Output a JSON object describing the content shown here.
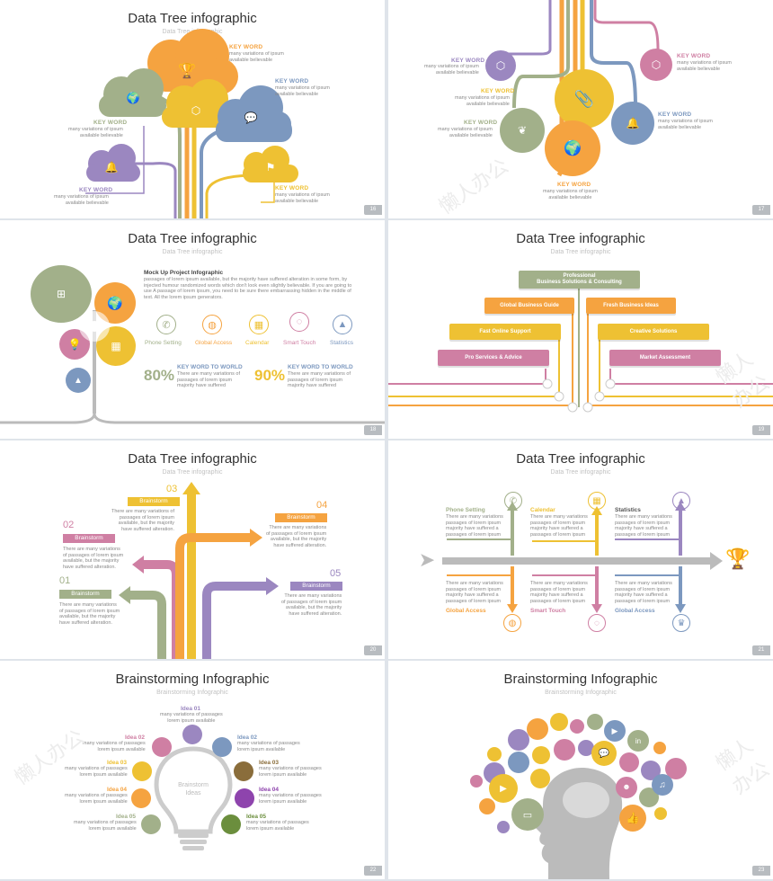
{
  "colors": {
    "orange": "#f5a340",
    "yellow": "#eec133",
    "green": "#a2b08a",
    "blue": "#7c98bf",
    "purple": "#9b87c0",
    "pink": "#cf7fa3",
    "gray": "#bbbbbb"
  },
  "watermark": "懒人办公",
  "s16": {
    "title": "Data Tree infographic",
    "subtitle": "Data Tree infographic",
    "page": "16",
    "items": [
      {
        "kw": "KEY WORD",
        "text": "many variations of ipsum\navailable believable"
      },
      {
        "kw": "KEY WORD",
        "text": "many variations of ipsum\navailable believable"
      },
      {
        "kw": "KEY WORD",
        "text": "many variations of ipsum\navailable believable"
      },
      {
        "kw": "KEY WORD",
        "text": "many variations of ipsum\navailable believable"
      },
      {
        "kw": "KEY WORD",
        "text": "many variations of ipsum\navailable believable"
      }
    ]
  },
  "s17": {
    "page": "17",
    "items": [
      {
        "kw": "KEY WORD",
        "text": "many variations of ipsum\navailable believable"
      },
      {
        "kw": "KEY WORD",
        "text": "many variations of ipsum\navailable believable"
      },
      {
        "kw": "KEY WORD",
        "text": "many variations of ipsum\navailable believable"
      },
      {
        "kw": "KEY WORD",
        "text": "many variations of ipsum\navailable believable"
      },
      {
        "kw": "KEY WORD",
        "text": "many variations of ipsum\navailable believable"
      },
      {
        "kw": "KEY WORD",
        "text": "many variations of ipsum\navailable believable"
      }
    ]
  },
  "s18": {
    "title": "Data Tree infographic",
    "subtitle": "Data Tree infographic",
    "page": "18",
    "mock_title": "Mock Up Project Infographic",
    "mock_text": "passages of lorem ipsum available, but the majority have suffered alteration in some form, by injected humour randomized words which don't look even slightly believable. If you are going to use A passage of lorem ipsum, you need to be sure there embarrassing hidden in the middle of text. All the lorem ipsum generators.",
    "features": [
      "Phone Setting",
      "Global Access",
      "Calendar",
      "Smart Touch",
      "Statistics"
    ],
    "stats": [
      {
        "pct": "80%",
        "kw": "KEY WORD TO WORLD",
        "text": "There are many variations of\npassages of lorem ipsum\nmajority have suffered"
      },
      {
        "pct": "90%",
        "kw": "KEY WORD TO WORLD",
        "text": "There are many variations of\npassages of lorem ipsum\nmajority have suffered"
      }
    ]
  },
  "s19": {
    "title": "Data Tree infographic",
    "subtitle": "Data Tree infographic",
    "page": "19",
    "top": "Professional\nBusiness Solutions & Consulting",
    "bars": [
      "Global Business Guide",
      "Fresh Business Ideas",
      "Fast Online Support",
      "Creative Solutions",
      "Pro Services & Advice",
      "Market Assessment"
    ]
  },
  "s20": {
    "title": "Data Tree infographic",
    "subtitle": "Data Tree infographic",
    "page": "20",
    "items": [
      {
        "num": "01",
        "label": "Brainstorm",
        "text": "There are many variations\nof passages of lorem ipsum\navailable, but the majority\nhave suffered alteration."
      },
      {
        "num": "02",
        "label": "Brainstorm",
        "text": "There are many variations\nof passages of lorem ipsum\navailable, but the majority\nhave suffered alteration."
      },
      {
        "num": "03",
        "label": "Brainstorm",
        "text": "There are many variations of\npassages of lorem ipsum\navailable, but the majority\nhave suffered alteration."
      },
      {
        "num": "04",
        "label": "Brainstorm",
        "text": "There are many variations\nof passages of lorem ipsum\navailable, but the majority\nhave suffered alteration."
      },
      {
        "num": "05",
        "label": "Brainstorm",
        "text": "There are many variations\nof passages of lorem ipsum\navailable, but the majority\nhave suffered alteration."
      }
    ]
  },
  "s21": {
    "title": "Data Tree infographic",
    "subtitle": "Data Tree infographic",
    "page": "21",
    "top": [
      {
        "label": "Phone Setting",
        "text": "There are many variations\npassages of lorem ipsum\nmajority have suffered a\npassages of lorem ipsum"
      },
      {
        "label": "Calendar",
        "text": "There are many variations\npassages of lorem ipsum\nmajority have suffered a\npassages of lorem ipsum"
      },
      {
        "label": "Statistics",
        "text": "There are many variations\npassages of lorem ipsum\nmajority have suffered a\npassages of lorem ipsum"
      }
    ],
    "bottom": [
      {
        "label": "Global Access",
        "text": "There are many variations\npassages of lorem ipsum\nmajority have suffered a\npassages of lorem ipsum"
      },
      {
        "label": "Smart Touch",
        "text": "There are many variations\npassages of lorem ipsum\nmajority have suffered a\npassages of lorem ipsum"
      },
      {
        "label": "Global Access",
        "text": "There are many variations\npassages of lorem ipsum\nmajority have suffered a\npassages of lorem ipsum"
      }
    ]
  },
  "s22": {
    "title": "Brainstorming Infographic",
    "subtitle": "Brainstorming Infographic",
    "page": "22",
    "bulb": "Brainstorm\nIdeas",
    "ideas": [
      {
        "t": "Idea 01",
        "d": "many variations of passages\nlorem ipsum available"
      },
      {
        "t": "Idea 02",
        "d": "many variations of passages\nlorem ipsum available"
      },
      {
        "t": "Idea 03",
        "d": "many variations of passages\nlorem ipsum available"
      },
      {
        "t": "Idea 04",
        "d": "many variations of passages\nlorem ipsum available"
      },
      {
        "t": "Idea 05",
        "d": "many variations of passages\nlorem ipsum available"
      },
      {
        "t": "Idea 02",
        "d": "many variations of passages\nlorem ipsum available"
      },
      {
        "t": "Idea 03",
        "d": "many variations of passages\nlorem ipsum available"
      },
      {
        "t": "Idea 04",
        "d": "many variations of passages\nlorem ipsum available"
      },
      {
        "t": "Idea 05",
        "d": "many variations of passages\nlorem ipsum available"
      }
    ]
  },
  "s23": {
    "title": "Brainstorming Infographic",
    "subtitle": "Brainstorming Infographic",
    "page": "23"
  }
}
